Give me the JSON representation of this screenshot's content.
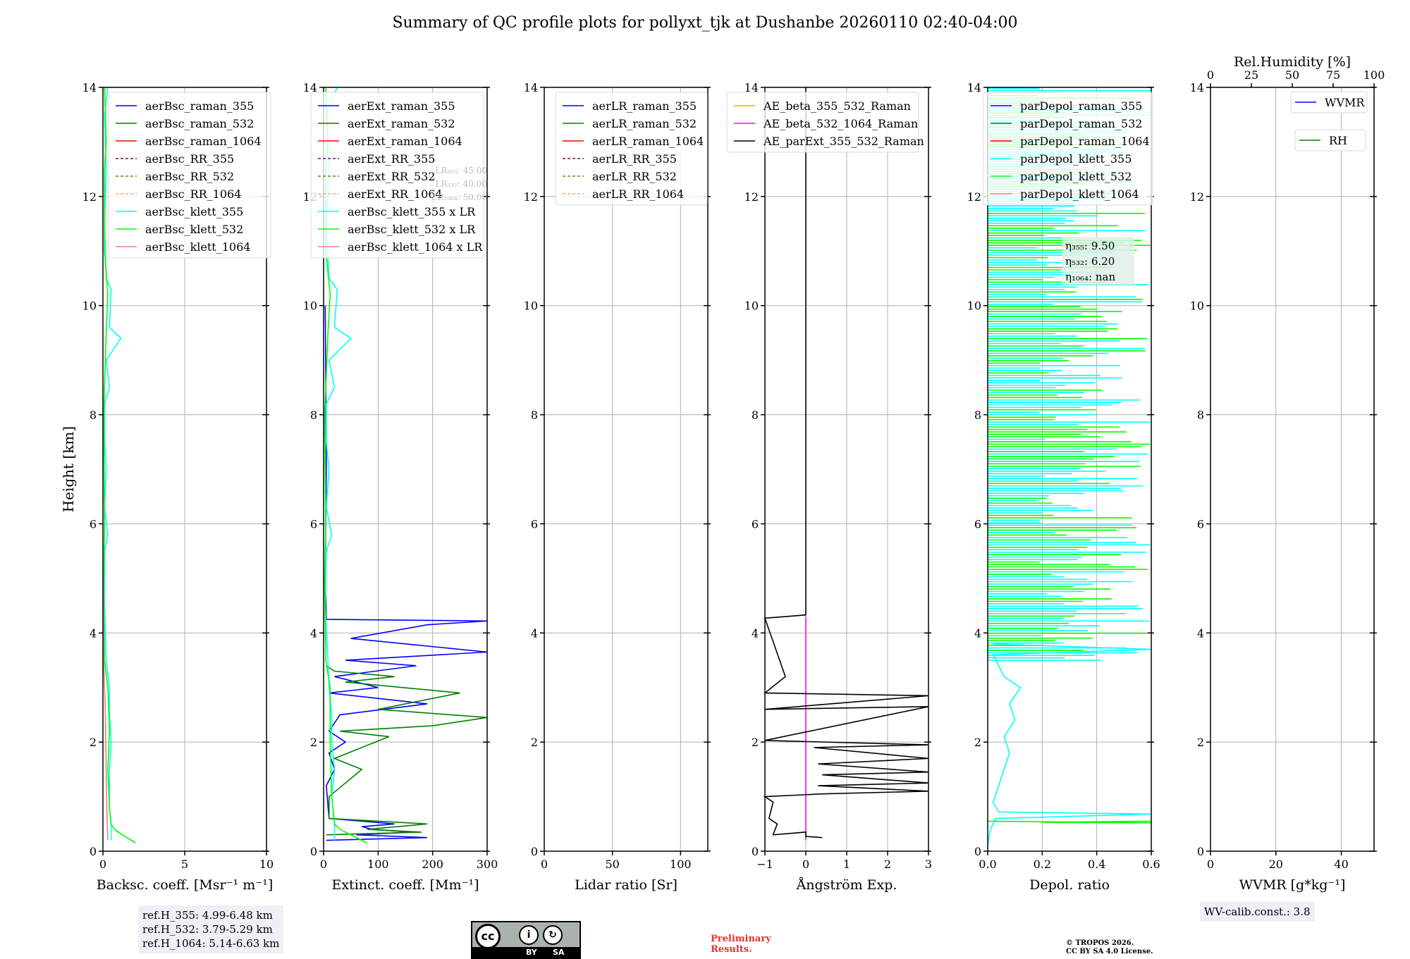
{
  "title": "Summary of QC profile plots for pollyxt_tjk at Dushanbe 20260110 02:40-04:00",
  "ylabel": "Height [km]",
  "colors": {
    "blue": "#0000ff",
    "green": "#008000",
    "red": "#ff0000",
    "purple": "#800080",
    "olive": "#808000",
    "salmon": "#ffa07a",
    "cyan": "#00ffff",
    "lime": "#00ff00",
    "lightcoral": "#f08080",
    "orange": "#ffa500",
    "magenta": "#ff00ff",
    "black": "#000000"
  },
  "chart_data": [
    {
      "type": "line",
      "id": "bsc",
      "xlabel": "Backsc. coeff. [Msr⁻¹ m⁻¹]",
      "xlim": [
        0,
        10
      ],
      "ylim": [
        0,
        14
      ],
      "xticks": [
        "0",
        "5",
        "10"
      ],
      "yticks": [
        "0",
        "2",
        "4",
        "6",
        "8",
        "10",
        "12",
        "14"
      ],
      "legend": [
        "aerBsc_raman_355",
        "aerBsc_raman_532",
        "aerBsc_raman_1064",
        "aerBsc_RR_355",
        "aerBsc_RR_532",
        "aerBsc_RR_1064",
        "aerBsc_klett_355",
        "aerBsc_klett_532",
        "aerBsc_klett_1064"
      ],
      "series": [
        {
          "name": "aerBsc_klett_355",
          "color": "cyan",
          "points": [
            [
              0.5,
              0.2
            ],
            [
              0.5,
              0.5
            ],
            [
              0.4,
              0.8
            ],
            [
              0.4,
              1.5
            ],
            [
              0.5,
              2.0
            ],
            [
              0.4,
              2.5
            ],
            [
              0.4,
              3.0
            ],
            [
              0.2,
              3.5
            ],
            [
              0.1,
              4.5
            ],
            [
              0.1,
              5.5
            ],
            [
              0.3,
              5.8
            ],
            [
              0.1,
              6.3
            ],
            [
              0.2,
              7.0
            ],
            [
              0.1,
              7.5
            ],
            [
              0.1,
              8.2
            ],
            [
              0.4,
              8.5
            ],
            [
              0.2,
              9.0
            ],
            [
              1.1,
              9.4
            ],
            [
              0.4,
              9.6
            ],
            [
              0.5,
              10.3
            ],
            [
              0.2,
              10.5
            ],
            [
              0.1,
              11.5
            ],
            [
              0.2,
              12.5
            ],
            [
              0.1,
              13.5
            ],
            [
              0.3,
              14.0
            ]
          ]
        },
        {
          "name": "aerBsc_klett_532",
          "color": "lime",
          "points": [
            [
              2.0,
              0.15
            ],
            [
              1.2,
              0.3
            ],
            [
              0.7,
              0.4
            ],
            [
              0.5,
              0.5
            ],
            [
              0.4,
              0.8
            ],
            [
              0.3,
              1.5
            ],
            [
              0.4,
              2.2
            ],
            [
              0.3,
              3.0
            ],
            [
              0.1,
              3.5
            ],
            [
              0.05,
              5.0
            ],
            [
              0.1,
              6.0
            ],
            [
              0.05,
              8.0
            ],
            [
              0.2,
              9.5
            ],
            [
              0.3,
              10.2
            ],
            [
              0.1,
              11.0
            ],
            [
              0.1,
              12.5
            ],
            [
              0.2,
              13.0
            ],
            [
              0.1,
              14.0
            ]
          ]
        },
        {
          "name": "aerBsc_klett_1064",
          "color": "lightcoral",
          "points": [
            [
              0.3,
              0.2
            ],
            [
              0.25,
              0.6
            ],
            [
              0.2,
              1.5
            ],
            [
              0.15,
              2.5
            ],
            [
              0.05,
              3.5
            ],
            [
              0.02,
              5.0
            ]
          ]
        }
      ],
      "textbox": {
        "lines": [
          "ref.H_355: 4.99-6.48 km",
          "ref.H_532: 3.79-5.29 km",
          "ref.H_1064: 5.14-6.63 km"
        ]
      }
    },
    {
      "type": "line",
      "id": "ext",
      "xlabel": "Extinct. coeff. [Mm⁻¹]",
      "xlim": [
        0,
        300
      ],
      "ylim": [
        0,
        14
      ],
      "xticks": [
        "0",
        "100",
        "200",
        "300"
      ],
      "yticks": [
        "0",
        "2",
        "4",
        "6",
        "8",
        "10",
        "12",
        "14"
      ],
      "legend": [
        "aerExt_raman_355",
        "aerExt_raman_532",
        "aerExt_raman_1064",
        "aerExt_RR_355",
        "aerExt_RR_532",
        "aerExt_RR_1064",
        "aerBsc_klett_355 x LR",
        "aerBsc_klett_532 x LR",
        "aerBsc_klett_1064 x LR"
      ],
      "lr_annotations": [
        "LR₃₅₅: 45.00",
        "LR₅₃₂: 40.00",
        "LR₁₀₆₄: 50.00"
      ],
      "series": [
        {
          "name": "aerExt_raman_355",
          "color": "blue",
          "points": [
            [
              5,
              0.2
            ],
            [
              190,
              0.25
            ],
            [
              60,
              0.3
            ],
            [
              160,
              0.35
            ],
            [
              90,
              0.4
            ],
            [
              70,
              0.45
            ],
            [
              130,
              0.5
            ],
            [
              10,
              0.6
            ],
            [
              5,
              1.2
            ],
            [
              20,
              1.5
            ],
            [
              10,
              1.8
            ],
            [
              40,
              2.0
            ],
            [
              10,
              2.2
            ],
            [
              30,
              2.5
            ],
            [
              190,
              2.7
            ],
            [
              10,
              2.9
            ],
            [
              100,
              3.0
            ],
            [
              20,
              3.2
            ],
            [
              170,
              3.4
            ],
            [
              40,
              3.5
            ],
            [
              300,
              3.65
            ],
            [
              150,
              3.8
            ],
            [
              50,
              3.9
            ],
            [
              190,
              4.15
            ],
            [
              300,
              4.22
            ],
            [
              5,
              4.25
            ],
            [
              3,
              5.0
            ],
            [
              5,
              7.0
            ],
            [
              3,
              10.0
            ]
          ]
        },
        {
          "name": "aerExt_raman_532",
          "color": "green",
          "points": [
            [
              5,
              0.3
            ],
            [
              180,
              0.35
            ],
            [
              80,
              0.4
            ],
            [
              190,
              0.5
            ],
            [
              10,
              0.6
            ],
            [
              10,
              1.0
            ],
            [
              70,
              1.5
            ],
            [
              20,
              1.7
            ],
            [
              120,
              2.1
            ],
            [
              30,
              2.2
            ],
            [
              200,
              2.3
            ],
            [
              300,
              2.45
            ],
            [
              100,
              2.6
            ],
            [
              250,
              2.9
            ],
            [
              40,
              3.1
            ],
            [
              130,
              3.2
            ],
            [
              20,
              3.3
            ],
            [
              5,
              3.4
            ]
          ]
        },
        {
          "name": "aerBsc_klett_355 x LR",
          "color": "cyan",
          "points": [
            [
              20,
              0.2
            ],
            [
              20,
              0.5
            ],
            [
              15,
              1.0
            ],
            [
              20,
              1.5
            ],
            [
              15,
              2.0
            ],
            [
              15,
              2.5
            ],
            [
              10,
              3.0
            ],
            [
              8,
              3.5
            ],
            [
              3,
              4.5
            ],
            [
              5,
              5.5
            ],
            [
              15,
              5.8
            ],
            [
              5,
              6.3
            ],
            [
              10,
              7.0
            ],
            [
              5,
              7.5
            ],
            [
              5,
              8.2
            ],
            [
              20,
              8.5
            ],
            [
              10,
              9.0
            ],
            [
              50,
              9.4
            ],
            [
              20,
              9.6
            ],
            [
              25,
              10.3
            ],
            [
              10,
              10.5
            ],
            [
              5,
              11.5
            ],
            [
              10,
              12.5
            ],
            [
              5,
              13.5
            ],
            [
              25,
              14.0
            ]
          ]
        },
        {
          "name": "aerBsc_klett_532 x LR",
          "color": "lime",
          "points": [
            [
              80,
              0.15
            ],
            [
              50,
              0.3
            ],
            [
              30,
              0.4
            ],
            [
              20,
              0.5
            ],
            [
              15,
              1.0
            ],
            [
              12,
              2.0
            ],
            [
              12,
              3.0
            ],
            [
              4,
              3.5
            ],
            [
              2,
              5.0
            ],
            [
              4,
              6.0
            ],
            [
              2,
              8.0
            ],
            [
              8,
              9.5
            ],
            [
              12,
              10.2
            ],
            [
              4,
              11.0
            ],
            [
              4,
              12.5
            ],
            [
              8,
              13.0
            ],
            [
              4,
              14.0
            ]
          ]
        }
      ]
    },
    {
      "type": "line",
      "id": "lr",
      "xlabel": "Lidar ratio [Sr]",
      "xlim": [
        0,
        120
      ],
      "ylim": [
        0,
        14
      ],
      "xticks": [
        "0",
        "50",
        "100"
      ],
      "yticks": [
        "0",
        "2",
        "4",
        "6",
        "8",
        "10",
        "12",
        "14"
      ],
      "legend": [
        "aerLR_raman_355",
        "aerLR_raman_532",
        "aerLR_raman_1064",
        "aerLR_RR_355",
        "aerLR_RR_532",
        "aerLR_RR_1064"
      ],
      "series": []
    },
    {
      "type": "line",
      "id": "ae",
      "xlabel": "Ångström Exp.",
      "xlim": [
        -1,
        3
      ],
      "ylim": [
        0,
        14
      ],
      "xticks": [
        "−1",
        "0",
        "1",
        "2",
        "3"
      ],
      "yticks": [
        "0",
        "2",
        "4",
        "6",
        "8",
        "10",
        "12",
        "14"
      ],
      "legend": [
        "AE_beta_355_532_Raman",
        "AE_beta_532_1064_Raman",
        "AE_parExt_355_532_Raman"
      ],
      "series": [
        {
          "name": "AE_beta_532_1064_Raman",
          "color": "magenta",
          "points": [
            [
              0,
              0.2
            ],
            [
              0,
              4.3
            ]
          ]
        },
        {
          "name": "AE_parExt_355_532_Raman",
          "color": "black",
          "points": [
            [
              0.4,
              0.25
            ],
            [
              0,
              0.27
            ],
            [
              0,
              0.35
            ],
            [
              -0.8,
              0.3
            ],
            [
              -0.7,
              0.5
            ],
            [
              -0.9,
              0.6
            ],
            [
              -0.8,
              0.9
            ],
            [
              -1,
              1.0
            ],
            [
              0.4,
              1.05
            ],
            [
              3,
              1.1
            ],
            [
              0.3,
              1.2
            ],
            [
              3,
              1.25
            ],
            [
              0.4,
              1.4
            ],
            [
              3,
              1.45
            ],
            [
              0.3,
              1.6
            ],
            [
              3,
              1.7
            ],
            [
              0.2,
              1.9
            ],
            [
              3,
              1.95
            ],
            [
              -1,
              2.03
            ],
            [
              3,
              2.65
            ],
            [
              -1,
              2.6
            ],
            [
              3,
              2.85
            ],
            [
              -1,
              2.9
            ],
            [
              -0.5,
              3.2
            ],
            [
              -1,
              4.27
            ],
            [
              0,
              4.33
            ],
            [
              0,
              14
            ]
          ]
        }
      ]
    },
    {
      "type": "line",
      "id": "depol",
      "xlabel": "Depol. ratio",
      "xlim": [
        0,
        0.6
      ],
      "ylim": [
        0,
        14
      ],
      "xticks": [
        "0.0",
        "0.2",
        "0.4",
        "0.6"
      ],
      "yticks": [
        "0",
        "2",
        "4",
        "6",
        "8",
        "10",
        "12",
        "14"
      ],
      "legend": [
        "parDepol_raman_355",
        "parDepol_raman_532",
        "parDepol_raman_1064",
        "parDepol_klett_355",
        "parDepol_klett_532",
        "parDepol_klett_1064"
      ],
      "eta_annotations": [
        "η₃₅₅: 9.50",
        "η₅₃₂: 6.20",
        "η₁₀₆₄: nan"
      ],
      "series": [
        {
          "name": "parDepol_klett_355",
          "color": "cyan",
          "points": [
            [
              0.0,
              0.1
            ],
            [
              0.01,
              0.4
            ],
            [
              0.03,
              0.6
            ],
            [
              0.6,
              0.68
            ],
            [
              0.04,
              0.72
            ],
            [
              0.02,
              0.9
            ],
            [
              0.04,
              1.2
            ],
            [
              0.06,
              1.5
            ],
            [
              0.08,
              1.8
            ],
            [
              0.06,
              2.1
            ],
            [
              0.1,
              2.4
            ],
            [
              0.08,
              2.7
            ],
            [
              0.12,
              3.0
            ],
            [
              0.06,
              3.2
            ],
            [
              0.04,
              3.4
            ],
            [
              0.02,
              3.6
            ],
            [
              0.6,
              3.7
            ],
            [
              0.02,
              3.8
            ]
          ]
        },
        {
          "name": "parDepol_klett_532",
          "color": "lime",
          "points": [
            [
              0.6,
              0.55
            ],
            [
              0.2,
              0.53
            ],
            [
              0.6,
              0.52
            ],
            [
              0.0,
              0.55
            ]
          ]
        }
      ]
    },
    {
      "type": "line",
      "id": "wv",
      "xlabel": "WVMR [g*kg⁻¹]",
      "xlim": [
        0,
        50
      ],
      "ylim": [
        0,
        14
      ],
      "xticks": [
        "0",
        "20",
        "40"
      ],
      "yticks": [
        "0",
        "2",
        "4",
        "6",
        "8",
        "10",
        "12",
        "14"
      ],
      "top_axis_label": "Rel.Humidity [%]",
      "top_xticks": [
        "0",
        "25",
        "50",
        "75",
        "100"
      ],
      "legend": [
        "WVMR",
        "RH"
      ],
      "series": [],
      "textbox": {
        "lines": [
          "WV-calib.const.: 3.8"
        ]
      }
    }
  ],
  "footer": {
    "preliminary": [
      "Preliminary",
      "Results."
    ],
    "copyright": [
      "© TROPOS 2026.",
      "CC BY SA 4.0 License."
    ],
    "license_badge": {
      "by": "BY",
      "sa": "SA",
      "cc": "cc"
    }
  }
}
